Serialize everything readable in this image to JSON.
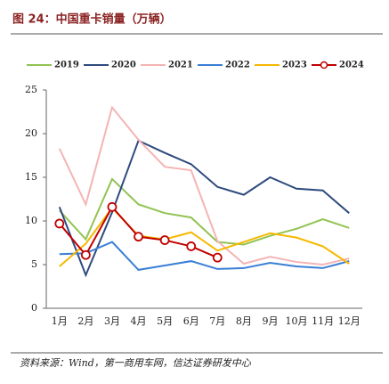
{
  "chart_data": {
    "type": "line",
    "title": "图 24：中国重卡销量（万辆）",
    "source": "资料来源：Wind，第一商用车网，信达证券研发中心",
    "categories": [
      "1月",
      "2月",
      "3月",
      "4月",
      "5月",
      "6月",
      "7月",
      "8月",
      "9月",
      "10月",
      "11月",
      "12月"
    ],
    "series": [
      {
        "name": "2019",
        "color": "#92c353",
        "values": [
          11.2,
          7.9,
          14.8,
          11.9,
          10.9,
          10.4,
          7.6,
          7.3,
          8.3,
          9.1,
          10.2,
          9.2
        ]
      },
      {
        "name": "2020",
        "color": "#2e4a7d",
        "values": [
          11.6,
          3.8,
          11.0,
          19.2,
          17.8,
          16.5,
          13.9,
          13.0,
          15.0,
          13.7,
          13.5,
          10.9
        ]
      },
      {
        "name": "2021",
        "color": "#f4b4b4",
        "values": [
          18.3,
          11.9,
          23.0,
          19.3,
          16.2,
          15.8,
          7.7,
          5.1,
          5.9,
          5.3,
          5.0,
          5.7
        ]
      },
      {
        "name": "2022",
        "color": "#3a7fd5",
        "values": [
          6.2,
          6.3,
          7.6,
          4.4,
          4.9,
          5.4,
          4.5,
          4.6,
          5.2,
          4.8,
          4.6,
          5.4
        ]
      },
      {
        "name": "2023",
        "color": "#f5b800",
        "values": [
          4.8,
          7.4,
          11.5,
          8.3,
          7.9,
          8.7,
          6.6,
          7.6,
          8.6,
          8.1,
          7.1,
          5.1
        ]
      },
      {
        "name": "2024",
        "color": "#c00000",
        "markers": true,
        "values": [
          9.7,
          6.1,
          11.6,
          8.2,
          7.8,
          7.1,
          5.8,
          null,
          null,
          null,
          null,
          null
        ]
      }
    ],
    "ylim": [
      0,
      25
    ],
    "yticks": [
      0,
      5,
      10,
      15,
      20,
      25
    ],
    "legend": "top"
  }
}
